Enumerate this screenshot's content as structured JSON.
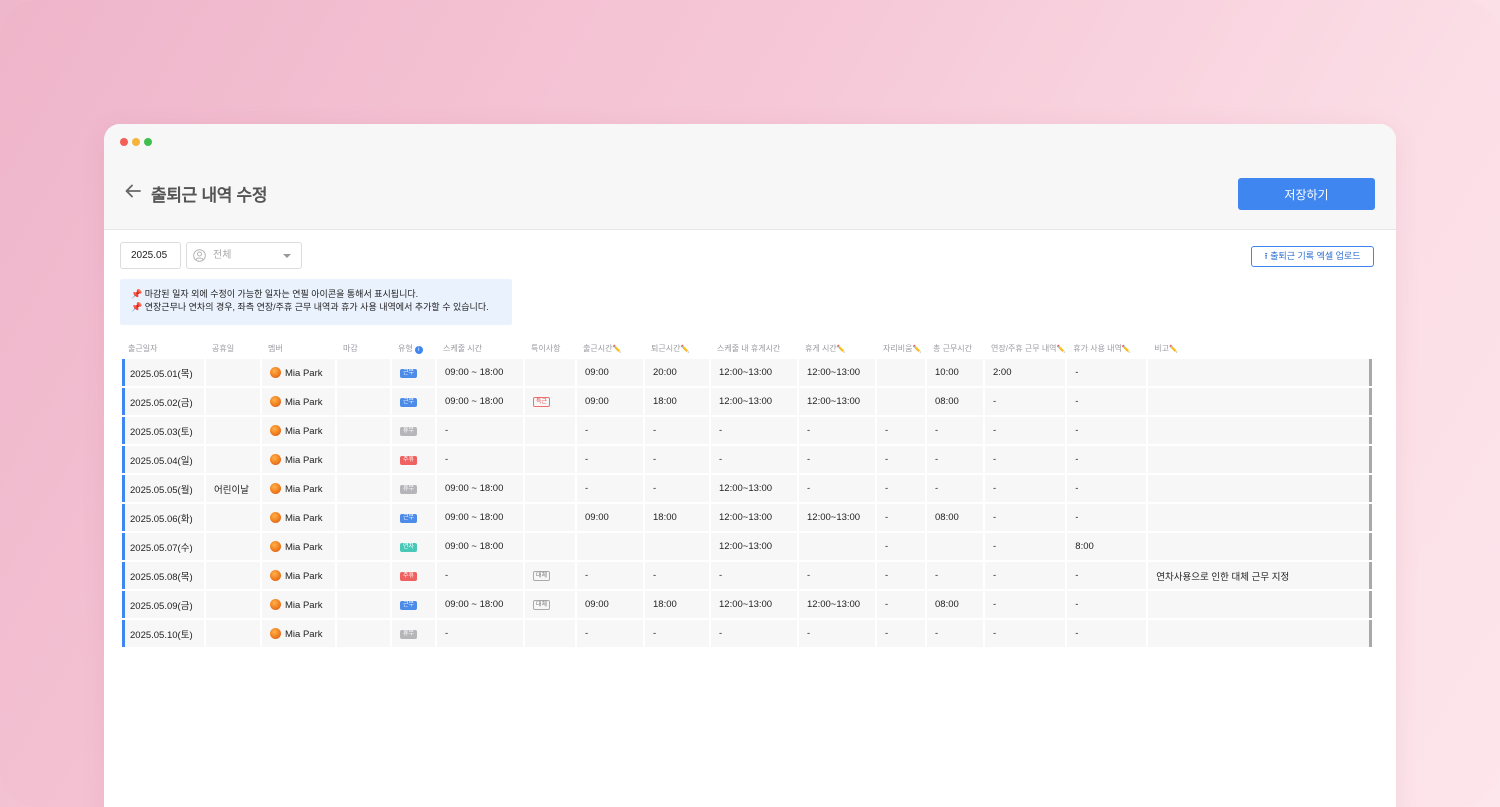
{
  "page": {
    "title": "출퇴근 내역 수정",
    "save_label": "저장하기",
    "upload_label": "출퇴근 기록 엑셀 업로드"
  },
  "filters": {
    "month": "2025.05",
    "member_placeholder": "전체"
  },
  "notice": {
    "line1": "마감된 일자 외에 수정이 가능한 일자는 연필 아이콘을 통해서 표시됩니다.",
    "line2": "연장근무나 연차의 경우, 좌측 연장/주휴 근무 내역과 휴가 사용 내역에서 추가할 수 있습니다."
  },
  "columns": {
    "date": "출근일자",
    "holiday": "공휴일",
    "member": "멤버",
    "closed": "마감",
    "type": "유형",
    "schedule": "스케줄 시간",
    "special": "특이사항",
    "in": "출근시간",
    "out": "퇴근시간",
    "sched_break": "스케줄 내 휴게시간",
    "break": "휴게 시간",
    "away": "자리비움",
    "total": "총 근무시간",
    "overtime": "연장/주휴 근무 내역",
    "leave": "휴가 사용 내역",
    "note": "비고"
  },
  "icons": {
    "back": "arrow-left-icon",
    "pin": "pushpin-icon",
    "pencil": "pencil-icon",
    "info": "info-icon",
    "upload": "upload-icon",
    "person": "person-icon",
    "caret": "chevron-down-icon"
  },
  "colors": {
    "accent": "#3f86f0",
    "work": "#4d8be8",
    "off": "#b6b6ba",
    "holiday": "#ef6060",
    "leave": "#48c9b8"
  },
  "rows": [
    {
      "date": "2025.05.01(목)",
      "holiday": "",
      "member": "Mia Park",
      "type": "근무",
      "type_kind": "work",
      "schedule": "09:00 ~ 18:00",
      "special": "",
      "in": "09:00",
      "out": "20:00",
      "sched_break": "12:00~13:00",
      "break": "12:00~13:00",
      "away": "",
      "total": "10:00",
      "overtime": "2:00",
      "leave": "-",
      "note": ""
    },
    {
      "date": "2025.05.02(금)",
      "holiday": "",
      "member": "Mia Park",
      "type": "근무",
      "type_kind": "work",
      "schedule": "09:00 ~ 18:00",
      "special": "특근",
      "special_kind": "red",
      "in": "09:00",
      "out": "18:00",
      "sched_break": "12:00~13:00",
      "break": "12:00~13:00",
      "away": "",
      "total": "08:00",
      "overtime": "-",
      "leave": "-",
      "note": ""
    },
    {
      "date": "2025.05.03(토)",
      "holiday": "",
      "member": "Mia Park",
      "type": "휴무",
      "type_kind": "off",
      "schedule": "-",
      "special": "",
      "in": "-",
      "out": "-",
      "sched_break": "-",
      "break": "-",
      "away": "-",
      "total": "-",
      "overtime": "-",
      "leave": "-",
      "note": ""
    },
    {
      "date": "2025.05.04(일)",
      "holiday": "",
      "member": "Mia Park",
      "type": "주휴",
      "type_kind": "hol",
      "schedule": "-",
      "special": "",
      "in": "-",
      "out": "-",
      "sched_break": "-",
      "break": "-",
      "away": "-",
      "total": "-",
      "overtime": "-",
      "leave": "-",
      "note": ""
    },
    {
      "date": "2025.05.05(월)",
      "holiday": "어린이날",
      "member": "Mia Park",
      "type": "휴무",
      "type_kind": "off",
      "schedule": "09:00 ~ 18:00",
      "special": "",
      "in": "-",
      "out": "-",
      "sched_break": "12:00~13:00",
      "break": "-",
      "away": "-",
      "total": "-",
      "overtime": "-",
      "leave": "-",
      "note": ""
    },
    {
      "date": "2025.05.06(화)",
      "holiday": "",
      "member": "Mia Park",
      "type": "근무",
      "type_kind": "work",
      "schedule": "09:00 ~ 18:00",
      "special": "",
      "in": "09:00",
      "out": "18:00",
      "sched_break": "12:00~13:00",
      "break": "12:00~13:00",
      "away": "-",
      "total": "08:00",
      "overtime": "-",
      "leave": "-",
      "note": ""
    },
    {
      "date": "2025.05.07(수)",
      "holiday": "",
      "member": "Mia Park",
      "type": "연차",
      "type_kind": "leave",
      "schedule": "09:00 ~ 18:00",
      "special": "",
      "in": "",
      "out": "",
      "sched_break": "12:00~13:00",
      "break": "",
      "away": "-",
      "total": "",
      "overtime": "-",
      "leave": "8:00",
      "note": ""
    },
    {
      "date": "2025.05.08(목)",
      "holiday": "",
      "member": "Mia Park",
      "type": "주휴",
      "type_kind": "hol",
      "schedule": "-",
      "special": "대체",
      "special_kind": "gray",
      "in": "-",
      "out": "-",
      "sched_break": "-",
      "break": "-",
      "away": "-",
      "total": "-",
      "overtime": "-",
      "leave": "-",
      "note": "연차사용으로 인한 대체 근무 지정"
    },
    {
      "date": "2025.05.09(금)",
      "holiday": "",
      "member": "Mia Park",
      "type": "근무",
      "type_kind": "work",
      "schedule": "09:00 ~ 18:00",
      "special": "대체",
      "special_kind": "gray",
      "in": "09:00",
      "out": "18:00",
      "sched_break": "12:00~13:00",
      "break": "12:00~13:00",
      "away": "-",
      "total": "08:00",
      "overtime": "-",
      "leave": "-",
      "note": ""
    },
    {
      "date": "2025.05.10(토)",
      "holiday": "",
      "member": "Mia Park",
      "type": "휴무",
      "type_kind": "off",
      "schedule": "-",
      "special": "",
      "in": "-",
      "out": "-",
      "sched_break": "-",
      "break": "-",
      "away": "-",
      "total": "-",
      "overtime": "-",
      "leave": "-",
      "note": ""
    }
  ]
}
